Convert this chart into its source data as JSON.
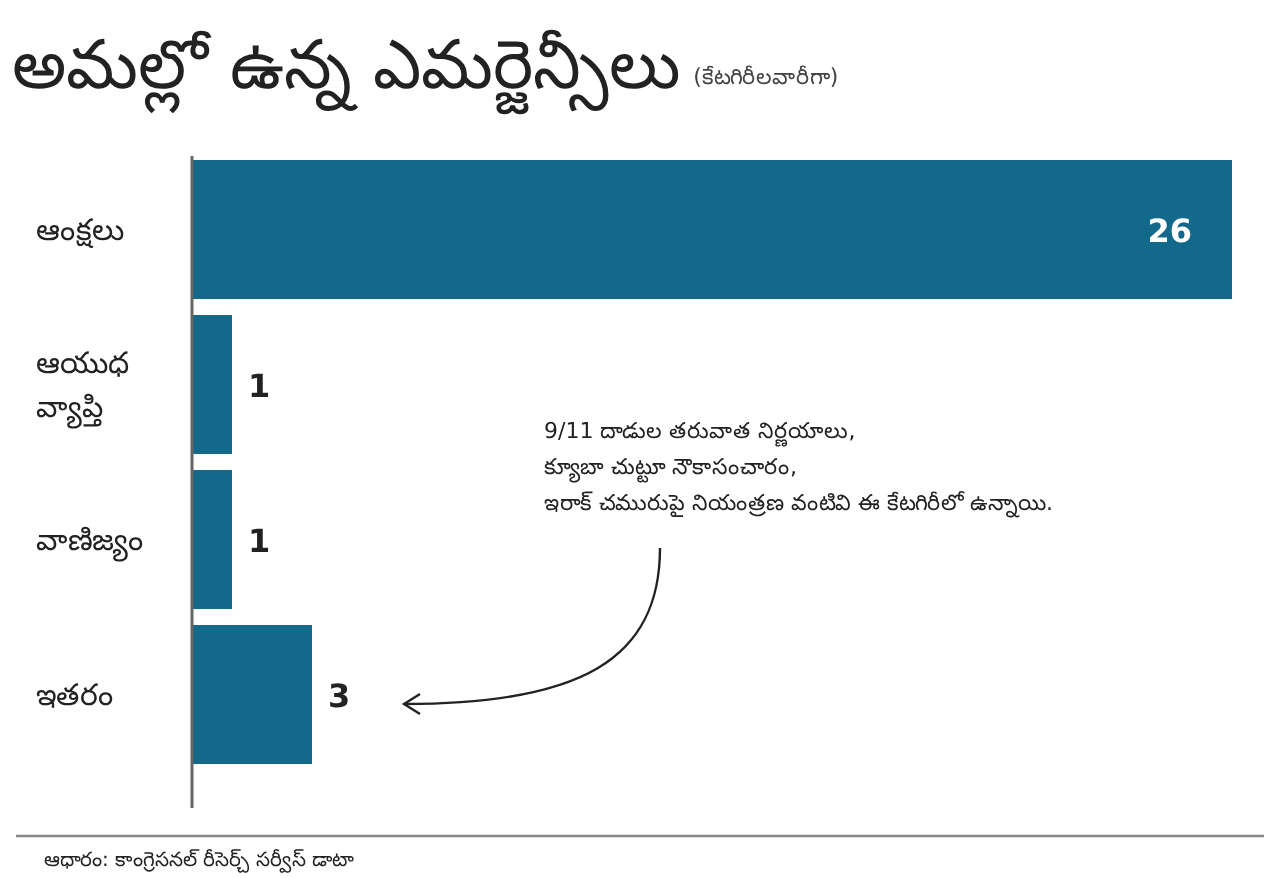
{
  "chart_data": {
    "type": "bar",
    "orientation": "horizontal",
    "title": "అమల్లో ఉన్న ఎమర్జెన్సీలు",
    "subtitle": "(కేటగిరీలవారీగా)",
    "categories": [
      "ఆంక్షలు",
      "ఆయుధ వ్యాప్తి",
      "వాణిజ్యం",
      "ఇతరం"
    ],
    "values": [
      26,
      1,
      1,
      3
    ],
    "color": "#13698a",
    "data_labels": true,
    "annotations": [
      "9/11 దాడుల తరువాత నిర్ణయాలు,\nక్యూబా చుట్టూ నౌకాసంచారం,\nఇరాక్ చమురుపై నియంత్రణ వంటివి ఈ కేటగిరీలో ఉన్నాయి.",
      "ఆధారం: కాంగ్రెసనల్ రీసెర్చ్ సర్వీస్ డాటా"
    ]
  }
}
